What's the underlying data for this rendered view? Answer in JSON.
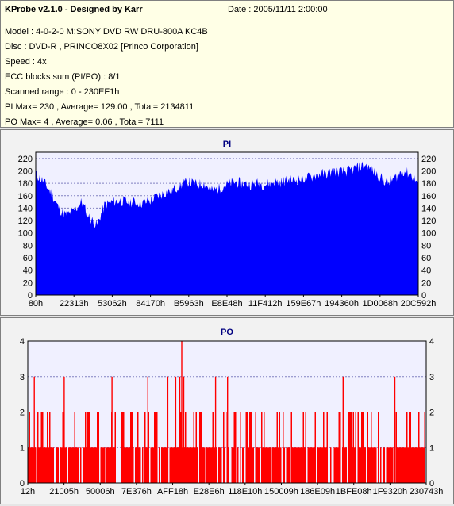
{
  "header": {
    "title": "KProbe v2.1.0 - Designed by Karr",
    "date": "Date : 2005/11/11 2:00:00",
    "lines": [
      "Model : 4-0-2-0 M:SONY    DVD RW DRU-800A  KC4B",
      "Disc : DVD-R , PRINCO8X02 [Princo Corporation]",
      "Speed : 4x",
      "ECC blocks sum (PI/PO) : 8/1",
      "Scanned range : 0 - 230EF1h",
      "PI Max= 230 , Average= 129.00 , Total= 2134811",
      "PO Max= 4 , Average= 0.06 , Total= 7111"
    ]
  },
  "colors": {
    "pi_fill": "#0000ff",
    "po_fill": "#ff0000",
    "plot_bg": "#f0f0ff",
    "grid": "#8080c0"
  },
  "chart_data": [
    {
      "type": "area",
      "title": "PI",
      "ylim": [
        0,
        230
      ],
      "y_ticks": [
        0,
        20,
        40,
        60,
        80,
        100,
        120,
        140,
        160,
        180,
        200,
        220
      ],
      "x_tick_labels": [
        "80h",
        "22313h",
        "53062h",
        "84170h",
        "B5963h",
        "E8E48h",
        "11F412h",
        "159E67h",
        "194360h",
        "1D0068h",
        "20C592h"
      ],
      "grid": true,
      "series": [
        {
          "x_fraction": [
            0,
            0.02,
            0.04,
            0.06,
            0.08,
            0.1,
            0.12,
            0.14,
            0.16,
            0.18,
            0.2,
            0.22,
            0.24,
            0.26,
            0.28,
            0.3,
            0.32,
            0.34,
            0.36,
            0.38,
            0.4,
            0.42,
            0.44,
            0.46,
            0.48,
            0.5,
            0.52,
            0.54,
            0.56,
            0.58,
            0.6,
            0.62,
            0.64,
            0.66,
            0.68,
            0.7,
            0.72,
            0.74,
            0.76,
            0.78,
            0.8,
            0.82,
            0.84,
            0.86,
            0.88,
            0.9,
            0.92,
            0.94,
            0.96,
            0.98,
            1
          ],
          "values": [
            195,
            183,
            165,
            140,
            128,
            135,
            150,
            125,
            112,
            145,
            150,
            152,
            150,
            150,
            148,
            152,
            160,
            165,
            170,
            178,
            182,
            178,
            180,
            168,
            172,
            178,
            182,
            180,
            178,
            180,
            178,
            182,
            182,
            185,
            185,
            188,
            190,
            195,
            195,
            200,
            198,
            200,
            205,
            210,
            200,
            190,
            180,
            190,
            200,
            195,
            180
          ]
        }
      ]
    },
    {
      "type": "bar",
      "title": "PO",
      "ylim": [
        0,
        4
      ],
      "y_ticks": [
        0,
        1,
        2,
        3,
        4
      ],
      "x_tick_labels": [
        "12h",
        "21005h",
        "50006h",
        "7E376h",
        "AFF18h",
        "E28E6h",
        "118E10h",
        "150009h",
        "186E09h",
        "1BFE08h",
        "1F9320h",
        "230743h"
      ],
      "grid": true,
      "series": [
        {
          "x_fraction": [
            0.015,
            0.09,
            0.21,
            0.3,
            0.35,
            0.37,
            0.38,
            0.385,
            0.39,
            0.47,
            0.5,
            0.79,
            0.92
          ],
          "values": [
            3,
            3,
            3,
            3,
            3,
            3,
            3,
            4,
            3,
            3,
            3,
            3,
            3
          ]
        }
      ]
    }
  ]
}
